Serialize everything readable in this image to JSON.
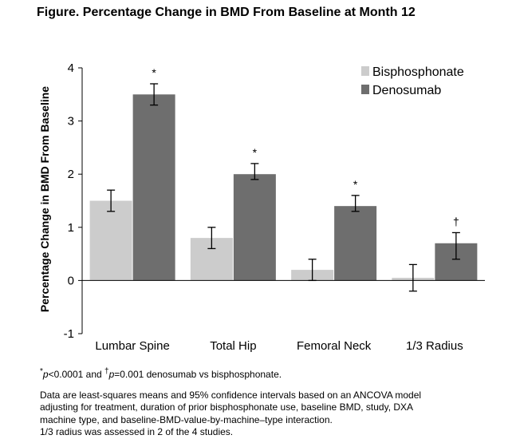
{
  "title": "Figure. Percentage Change in BMD From Baseline at Month 12",
  "chart_data": {
    "type": "bar",
    "categories": [
      "Lumbar Spine",
      "Total Hip",
      "Femoral Neck",
      "1/3 Radius"
    ],
    "series": [
      {
        "name": "Bisphosphonate",
        "values": [
          1.5,
          0.8,
          0.2,
          0.05
        ],
        "ci_low": [
          1.3,
          0.6,
          0.0,
          -0.2
        ],
        "ci_high": [
          1.7,
          1.0,
          0.4,
          0.3
        ],
        "color": "#cccccc"
      },
      {
        "name": "Denosumab",
        "values": [
          3.5,
          2.0,
          1.4,
          0.7
        ],
        "ci_low": [
          3.3,
          1.9,
          1.3,
          0.4
        ],
        "ci_high": [
          3.7,
          2.2,
          1.6,
          0.9
        ],
        "color": "#6e6e6e"
      }
    ],
    "significance_markers": [
      "*",
      "*",
      "*",
      "†"
    ],
    "ylabel": "Percentage Change in BMD From Baseline",
    "xlabel": "",
    "ylim": [
      -1,
      4
    ],
    "yticks": [
      -1,
      0,
      1,
      2,
      3,
      4
    ],
    "grid": false,
    "legend_position": "top-right"
  },
  "footnotes": {
    "sig_star": "*",
    "sig_p1": "p",
    "sig_text1": "<0.0001 and ",
    "sig_dagger": "†",
    "sig_p2": "p",
    "sig_text2": "=0.001 denosumab vs bisphosphonate.",
    "body": "Data are least-squares means and 95% confidence intervals based on an ANCOVA model\nadjusting for treatment, duration of prior bisphosphonate use, baseline BMD, study, DXA\nmachine type, and baseline-BMD-value-by-machine–type interaction.\n1/3 radius was assessed in 2 of the 4 studies."
  }
}
